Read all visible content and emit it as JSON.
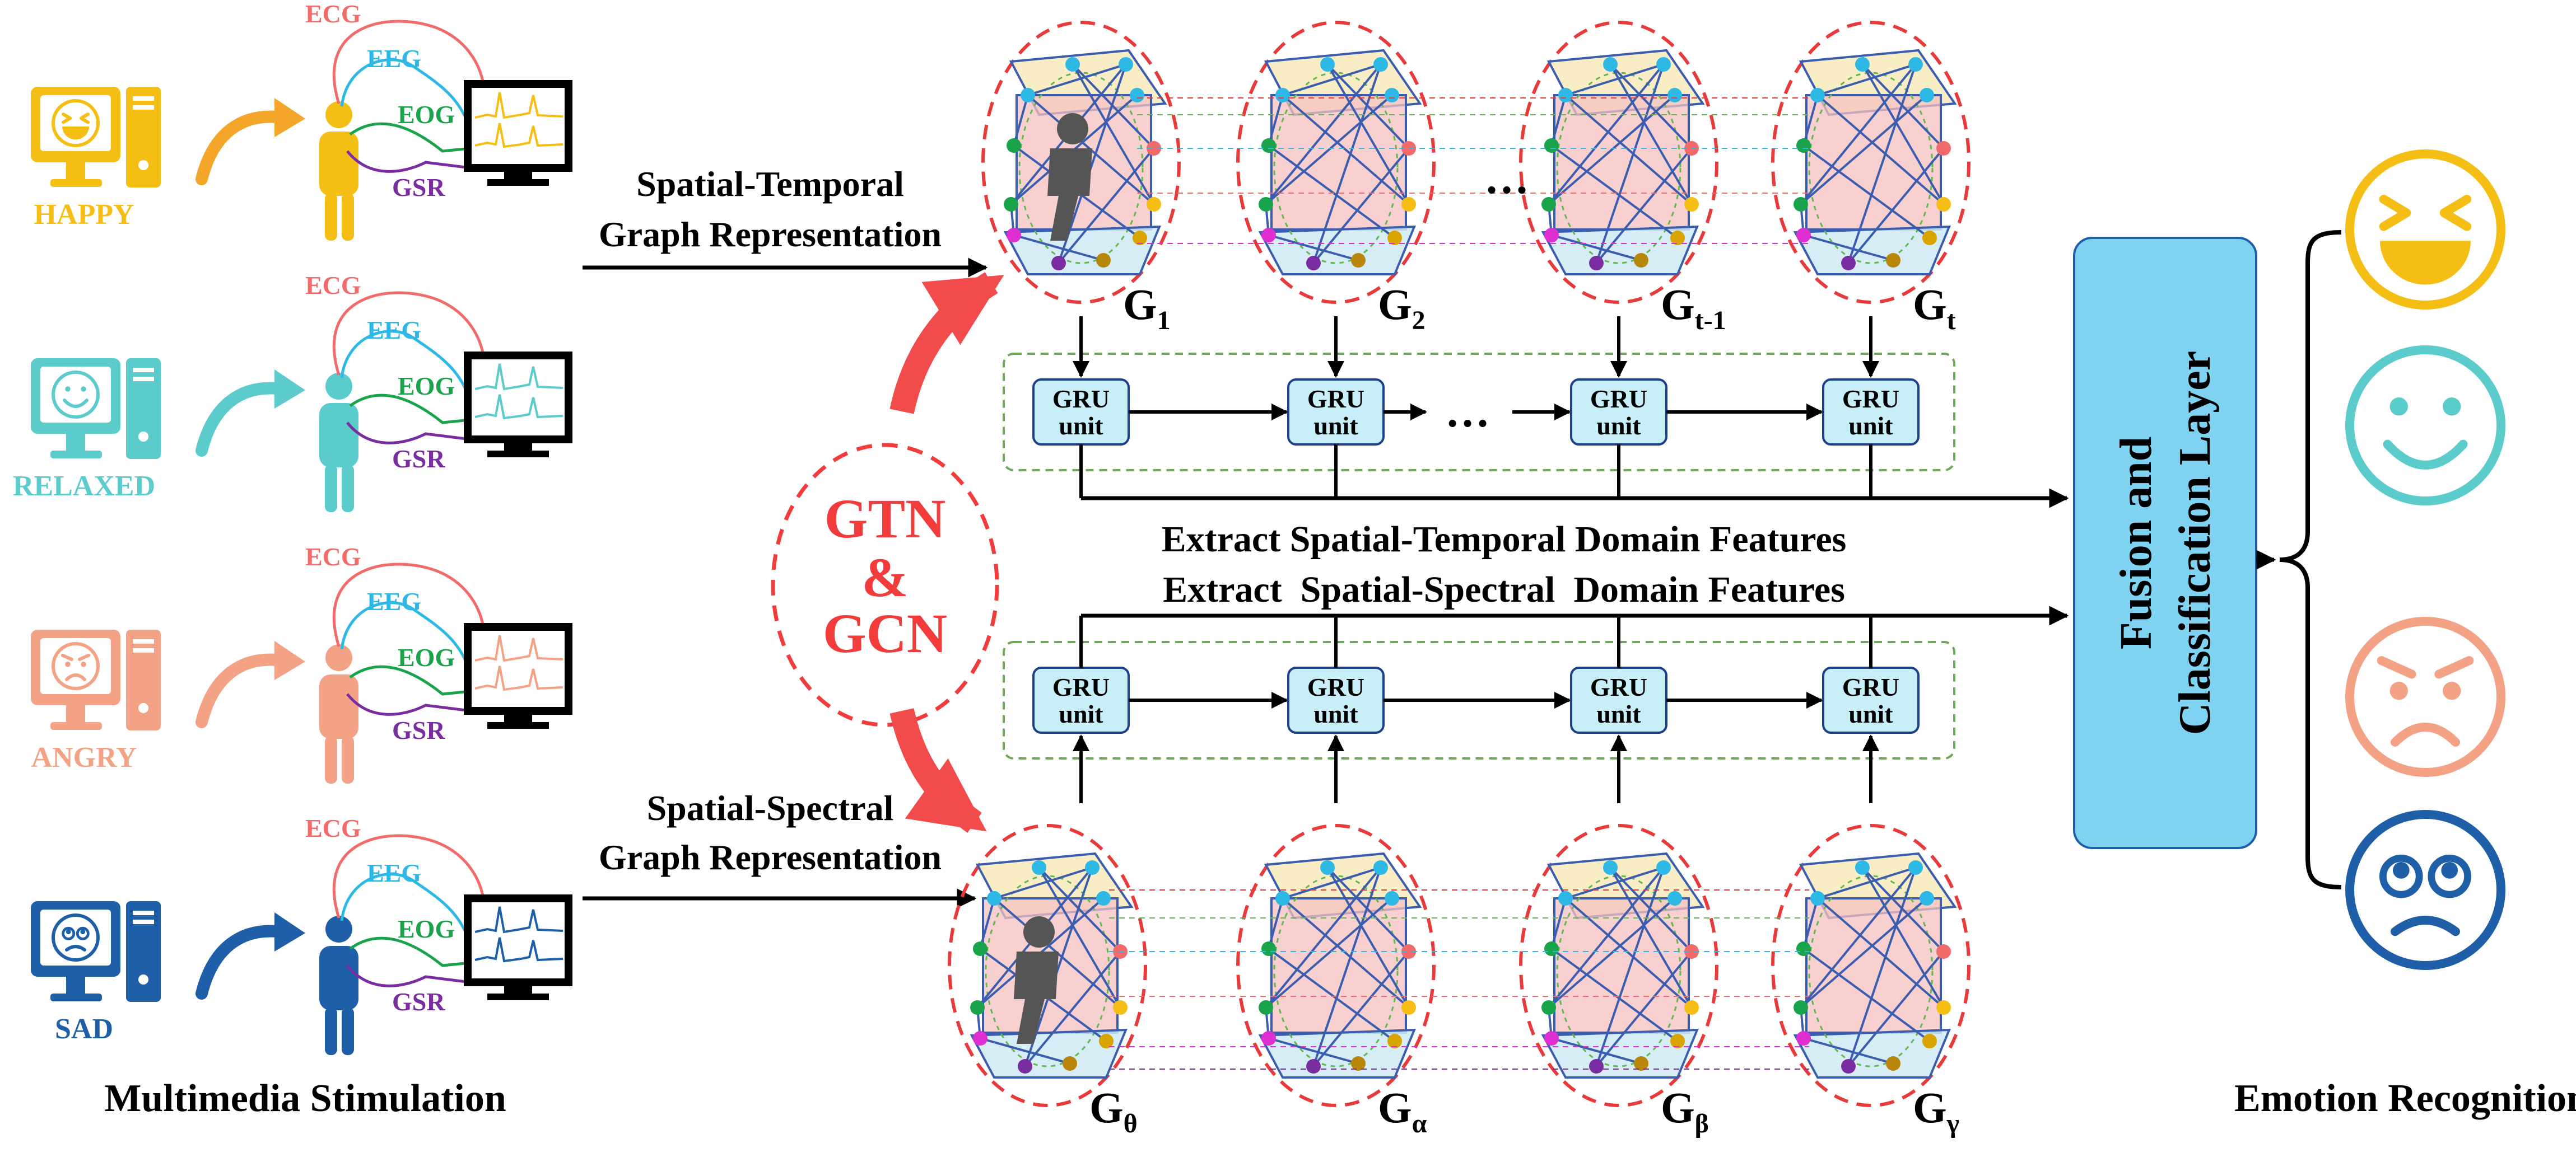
{
  "stimulation": {
    "title": "Multimedia Stimulation",
    "emotions": [
      {
        "label": "HAPPY",
        "color": "#F4BE14",
        "face": "laughing-face",
        "arrow_color": "#F4A62A",
        "person_color": "#F4BE14"
      },
      {
        "label": "RELAXED",
        "color": "#5CCBCB",
        "face": "smiling-face",
        "arrow_color": "#5CCBCB",
        "person_color": "#5CCBCB"
      },
      {
        "label": "ANGRY",
        "color": "#F4A285",
        "face": "angry-face",
        "arrow_color": "#F4A285",
        "person_color": "#F4A285"
      },
      {
        "label": "SAD",
        "color": "#1E5FA8",
        "face": "sad-face",
        "arrow_color": "#1E5FA8",
        "person_color": "#1E5FA8"
      }
    ],
    "signals": [
      {
        "label": "ECG",
        "color": "#F26B6B"
      },
      {
        "label": "EEG",
        "color": "#2EB8E6"
      },
      {
        "label": "EOG",
        "color": "#19A34A"
      },
      {
        "label": "GSR",
        "color": "#7A2DA0"
      }
    ]
  },
  "representations": {
    "temporal": [
      "Spatial-Temporal",
      "Graph Representation"
    ],
    "spectral": [
      "Spatial-Spectral",
      "Graph Representation"
    ]
  },
  "gtn": {
    "lines": [
      "GTN",
      "&",
      "GCN"
    ],
    "color": "#F23B3B"
  },
  "temporal_graphs": [
    {
      "base": "G",
      "sub": "1"
    },
    {
      "base": "G",
      "sub": "2"
    },
    {
      "base": "G",
      "sub": "t-1"
    },
    {
      "base": "G",
      "sub": "t"
    }
  ],
  "spectral_graphs": [
    {
      "base": "G",
      "sub": "θ"
    },
    {
      "base": "G",
      "sub": "α"
    },
    {
      "base": "G",
      "sub": "β"
    },
    {
      "base": "G",
      "sub": "γ"
    }
  ],
  "ellipsis": "…",
  "gru_label": [
    "GRU",
    "unit"
  ],
  "features": {
    "temporal": "Extract Spatial-Temporal Domain Features",
    "spectral": "Extract  Spatial-Spectral  Domain Features"
  },
  "fusion": {
    "lines": [
      "Fusion and",
      "Classification Layer"
    ],
    "fill": "#7FD3F0"
  },
  "recognition": {
    "title": "Emotion Recognition",
    "faces": [
      {
        "name": "laughing-face",
        "color": "#F4BE14"
      },
      {
        "name": "smiling-face",
        "color": "#5CCBCB"
      },
      {
        "name": "angry-face",
        "color": "#F4A285"
      },
      {
        "name": "sad-face",
        "color": "#1E5FA8"
      }
    ]
  }
}
